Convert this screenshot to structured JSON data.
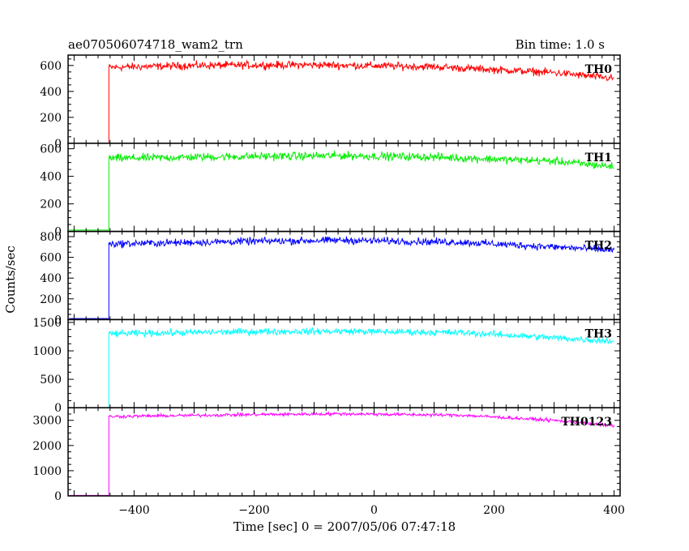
{
  "header": {
    "title": "ae070506074718_wam2_trn",
    "bin_time": "Bin time: 1.0 s"
  },
  "chart_data": {
    "type": "line",
    "xlabel": "Time [sec] 0 = 2007/05/06 07:47:18",
    "ylabel": "Counts/sec",
    "xlim": [
      -510,
      410
    ],
    "xticks": [
      -400,
      -200,
      0,
      200,
      400
    ],
    "x_tick_labels": [
      "−400",
      "−200",
      "0",
      "200",
      "400"
    ],
    "step_time": -442,
    "data_start": -508,
    "data_end": 400,
    "series": [
      {
        "name": "TH0",
        "color": "#ff0000",
        "ylim": [
          0,
          680
        ],
        "yticks": [
          0,
          200,
          400,
          600
        ],
        "pre_level": 0,
        "profile": [
          [
            -442,
            585
          ],
          [
            -300,
            600
          ],
          [
            -100,
            605
          ],
          [
            100,
            590
          ],
          [
            300,
            545
          ],
          [
            400,
            500
          ]
        ],
        "noise": 25
      },
      {
        "name": "TH1",
        "color": "#00ee00",
        "ylim": [
          0,
          640
        ],
        "yticks": [
          0,
          200,
          400,
          600
        ],
        "pre_level": 10,
        "profile": [
          [
            -442,
            530
          ],
          [
            -200,
            545
          ],
          [
            -50,
            550
          ],
          [
            100,
            540
          ],
          [
            300,
            510
          ],
          [
            400,
            470
          ]
        ],
        "noise": 25
      },
      {
        "name": "TH2",
        "color": "#0000ff",
        "ylim": [
          0,
          850
        ],
        "yticks": [
          0,
          200,
          400,
          600,
          800
        ],
        "pre_level": 10,
        "profile": [
          [
            -442,
            730
          ],
          [
            -200,
            755
          ],
          [
            -50,
            765
          ],
          [
            150,
            745
          ],
          [
            300,
            700
          ],
          [
            400,
            670
          ]
        ],
        "noise": 30
      },
      {
        "name": "TH3",
        "color": "#00ffff",
        "ylim": [
          0,
          1550
        ],
        "yticks": [
          0,
          500,
          1000,
          1500
        ],
        "pre_level": 0,
        "profile": [
          [
            -442,
            1300
          ],
          [
            -200,
            1340
          ],
          [
            -50,
            1345
          ],
          [
            150,
            1320
          ],
          [
            300,
            1230
          ],
          [
            400,
            1170
          ]
        ],
        "noise": 50
      },
      {
        "name": "TH0123",
        "color": "#ff00ff",
        "ylim": [
          0,
          3500
        ],
        "yticks": [
          0,
          1000,
          2000,
          3000
        ],
        "pre_level": 20,
        "profile": [
          [
            -442,
            3150
          ],
          [
            -200,
            3230
          ],
          [
            -50,
            3260
          ],
          [
            150,
            3200
          ],
          [
            300,
            3000
          ],
          [
            400,
            2780
          ]
        ],
        "noise": 55
      }
    ]
  }
}
